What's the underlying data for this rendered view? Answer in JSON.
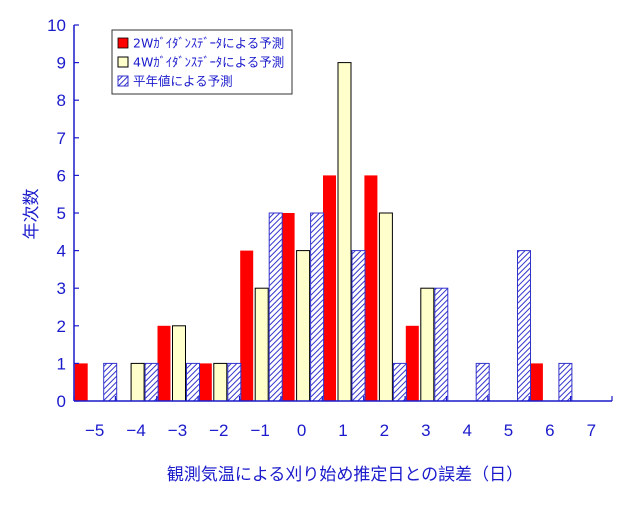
{
  "chart_data": {
    "type": "bar",
    "xlabel": "観測気温による刈り始め推定日との誤差（日）",
    "ylabel": "年次数",
    "ylim": [
      0,
      10
    ],
    "yticks": [
      "0",
      "1",
      "2",
      "3",
      "4",
      "5",
      "6",
      "7",
      "8",
      "9",
      "10"
    ],
    "categories": [
      "−5",
      "−4",
      "−3",
      "−2",
      "−1",
      "0",
      "1",
      "2",
      "3",
      "4",
      "5",
      "6",
      "7"
    ],
    "series": [
      {
        "name": "2Wｶﾞｲﾀﾞﾝｽﾃﾞｰﾀによる予測",
        "color": "#ff0000",
        "fill": "solid",
        "values": [
          1,
          0,
          2,
          1,
          4,
          5,
          6,
          6,
          2,
          0,
          0,
          1,
          0
        ]
      },
      {
        "name": "4Wｶﾞｲﾀﾞﾝｽﾃﾞｰﾀによる予測",
        "color": "#ffffcc",
        "fill": "outline-black",
        "values": [
          0,
          1,
          2,
          1,
          3,
          4,
          9,
          5,
          3,
          0,
          0,
          0,
          0
        ]
      },
      {
        "name": "平年値による予測",
        "color": "#3333cc",
        "fill": "hatched",
        "values": [
          1,
          1,
          1,
          1,
          5,
          5,
          4,
          1,
          3,
          1,
          4,
          1,
          0
        ]
      }
    ],
    "legend_position": "top-left",
    "axis_color": "#1a1acc",
    "grid": false
  }
}
